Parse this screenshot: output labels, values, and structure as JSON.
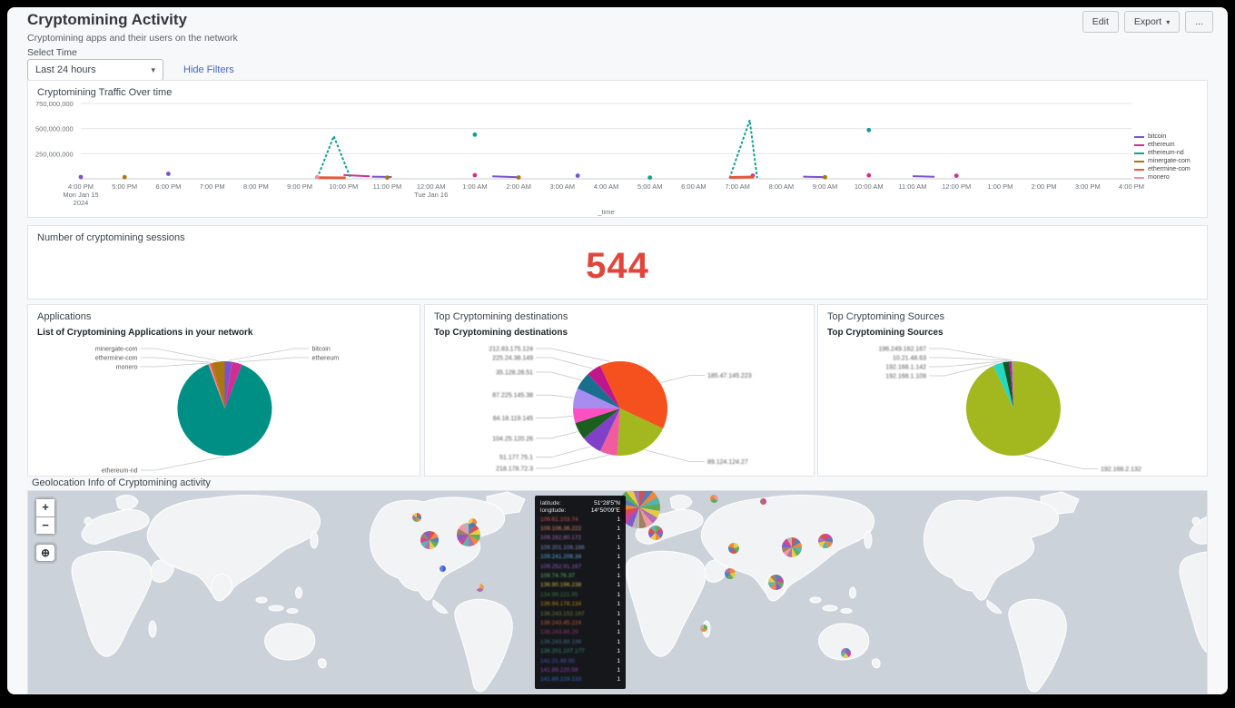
{
  "header": {
    "title": "Cryptomining Activity",
    "subtitle": "Cryptomining apps and their users on the network",
    "select_time_label": "Select Time",
    "time_range_value": "Last 24 hours",
    "hide_filters_label": "Hide Filters",
    "edit_label": "Edit",
    "export_label": "Export",
    "more_label": "..."
  },
  "panels": {
    "traffic_title": "Cryptomining Traffic Over time",
    "sessions_title": "Number of cryptomining sessions",
    "sessions_value": "544",
    "sessions_color": "#e0463c",
    "applications_title": "Applications",
    "applications_subtitle": "List of Cryptomining Applications in your network",
    "destinations_title": "Top Cryptomining destinations",
    "destinations_subtitle": "Top Cryptomining destinations",
    "sources_title": "Top Cryptomining Sources",
    "sources_subtitle": "Top Cryptomining Sources",
    "map_title": "Geolocation Info of Cryptomining activity"
  },
  "map_panel": {
    "zoom_in": "+",
    "zoom_out": "−",
    "locate": "⊕",
    "tooltip": {
      "latitude_label": "latitude:",
      "latitude_value": "51°28'5\"N",
      "longitude_label": "longitude:",
      "longitude_value": "14°50'09\"E",
      "rows": [
        {
          "ip": "108.61.103.74",
          "color": "#d9534f",
          "count": "1"
        },
        {
          "ip": "109.106.36.222",
          "color": "#e8837a",
          "count": "1"
        },
        {
          "ip": "109.162.80.172",
          "color": "#a569bd",
          "count": "1"
        },
        {
          "ip": "109.201.106.166",
          "color": "#7b88c4",
          "count": "1"
        },
        {
          "ip": "109.241.206.34",
          "color": "#5dade2",
          "count": "1"
        },
        {
          "ip": "109.252.91.167",
          "color": "#8e5ec9",
          "count": "1"
        },
        {
          "ip": "109.74.76.37",
          "color": "#58b36a",
          "count": "1"
        },
        {
          "ip": "136.90.196.238",
          "color": "#c9b845",
          "count": "1"
        },
        {
          "ip": "134.99.221.95",
          "color": "#3f7a4e",
          "count": "1"
        },
        {
          "ip": "136.94.178.134",
          "color": "#b8860b",
          "count": "1"
        },
        {
          "ip": "136.243.152.167",
          "color": "#6e7f3c",
          "count": "1"
        },
        {
          "ip": "136.243.45.224",
          "color": "#c45a3c",
          "count": "1"
        },
        {
          "ip": "136.243.86.29",
          "color": "#8e3c6e",
          "count": "1"
        },
        {
          "ip": "136.243.88.196",
          "color": "#3c6e8e",
          "count": "1"
        },
        {
          "ip": "136.201.107.177",
          "color": "#2e8b7a",
          "count": "1"
        },
        {
          "ip": "141.21.48.65",
          "color": "#4455c4",
          "count": "1"
        },
        {
          "ip": "141.89.220.59",
          "color": "#8e44ad",
          "count": "1"
        },
        {
          "ip": "141.89.229.133",
          "color": "#2e6ec4",
          "count": "1"
        }
      ]
    }
  },
  "chart_data": [
    {
      "id": "traffic",
      "type": "line",
      "title": "Cryptomining Traffic Over time",
      "xlabel": "_time",
      "ylim": [
        0,
        750000000
      ],
      "yticks": [
        {
          "value": 750000000,
          "label": "750,000,000"
        },
        {
          "value": 500000000,
          "label": "500,000,000"
        },
        {
          "value": 250000000,
          "label": "250,000,000"
        }
      ],
      "xticks": [
        {
          "label": "4:00 PM",
          "sub": "Mon Jan 15",
          "sub2": "2024"
        },
        {
          "label": "5:00 PM"
        },
        {
          "label": "6:00 PM"
        },
        {
          "label": "7:00 PM"
        },
        {
          "label": "8:00 PM"
        },
        {
          "label": "9:00 PM"
        },
        {
          "label": "10:00 PM"
        },
        {
          "label": "11:00 PM"
        },
        {
          "label": "12:00 AM",
          "sub": "Tue Jan 16"
        },
        {
          "label": "1:00 AM"
        },
        {
          "label": "2:00 AM"
        },
        {
          "label": "3:00 AM"
        },
        {
          "label": "4:00 AM"
        },
        {
          "label": "5:00 AM"
        },
        {
          "label": "6:00 AM"
        },
        {
          "label": "7:00 AM"
        },
        {
          "label": "8:00 AM"
        },
        {
          "label": "9:00 AM"
        },
        {
          "label": "10:00 AM"
        },
        {
          "label": "11:00 AM"
        },
        {
          "label": "12:00 PM"
        },
        {
          "label": "1:00 PM"
        },
        {
          "label": "2:00 PM"
        },
        {
          "label": "3:00 PM"
        },
        {
          "label": "4:00 PM"
        }
      ],
      "series": [
        {
          "name": "bitcoin",
          "color": "#7a52cc",
          "dots": [
            [
              0,
              18000000
            ],
            [
              2,
              50000000
            ],
            [
              11.35,
              32000000
            ]
          ],
          "lines": [
            [
              [
                6.65,
                22000000
              ],
              [
                7.1,
                18000000
              ]
            ],
            [
              [
                9.4,
                24000000
              ],
              [
                10,
                15000000
              ]
            ],
            [
              [
                16.5,
                22000000
              ],
              [
                17,
                17000000
              ]
            ],
            [
              [
                19,
                26000000
              ],
              [
                19.5,
                21000000
              ]
            ]
          ]
        },
        {
          "name": "ethereum",
          "color": "#cf2f92",
          "dots": [
            [
              9,
              36000000
            ],
            [
              15.35,
              32000000
            ],
            [
              18,
              34000000
            ],
            [
              20,
              31000000
            ]
          ],
          "lines": [
            [
              [
                6,
                38000000
              ],
              [
                6.6,
                24000000
              ]
            ]
          ]
        },
        {
          "name": "ethereum-nd",
          "color": "#11a095",
          "dash": true,
          "dots": [
            [
              9,
              440000000
            ],
            [
              13,
              12000000
            ],
            [
              18,
              485000000
            ]
          ],
          "lines": [
            [
              [
                5.4,
                6000000
              ],
              [
                5.78,
                425000000
              ],
              [
                6.16,
                8000000
              ]
            ],
            [
              [
                14.82,
                6000000
              ],
              [
                15.28,
                585000000
              ],
              [
                15.45,
                8000000
              ]
            ]
          ]
        },
        {
          "name": "minergate-com",
          "color": "#a8770f",
          "dots": [
            [
              1,
              16000000
            ],
            [
              7,
              12000000
            ],
            [
              10,
              14000000
            ],
            [
              17,
              16000000
            ]
          ],
          "lines": []
        },
        {
          "name": "ethermine-com",
          "color": "#e4593c",
          "width": 3,
          "dots": [],
          "lines": [
            [
              [
                5.4,
                11000000
              ],
              [
                6.05,
                9000000
              ]
            ],
            [
              [
                14.82,
                14000000
              ],
              [
                15.38,
                18000000
              ]
            ]
          ]
        },
        {
          "name": "monero",
          "color": "#f28e9e",
          "dots": [
            [
              5.4,
              16000000
            ]
          ],
          "lines": []
        }
      ]
    },
    {
      "id": "applications",
      "type": "pie",
      "title": "List of Cryptomining Applications in your network",
      "blurred": false,
      "slices": [
        {
          "label": "bitcoin",
          "value": 2.5,
          "color": "#7a52cc"
        },
        {
          "label": "ethereum",
          "value": 3.5,
          "color": "#cf2f92"
        },
        {
          "label": "ethereum-nd",
          "value": 88.3,
          "color": "#008f85"
        },
        {
          "label": "monero",
          "value": 0.6,
          "color": "#f28e9e"
        },
        {
          "label": "ethermine-com",
          "value": 0.8,
          "color": "#e4593c"
        },
        {
          "label": "minergate-com",
          "value": 4.3,
          "color": "#a8770f"
        }
      ]
    },
    {
      "id": "destinations",
      "type": "pie",
      "title": "Top Cryptomining destinations",
      "blurred": true,
      "slices": [
        {
          "label": "185.47.145.223",
          "value": 32,
          "color": "#f4511e"
        },
        {
          "label": "89.124.124.27",
          "value": 19,
          "color": "#a2b81e"
        },
        {
          "label": "218.178.72.3",
          "value": 6,
          "color": "#ef5da0"
        },
        {
          "label": "51.177.75.1",
          "value": 7,
          "color": "#8040c8"
        },
        {
          "label": "104.25.120.26",
          "value": 6,
          "color": "#1b5e20"
        },
        {
          "label": "84.18.119.145",
          "value": 5,
          "color": "#ff4fc3"
        },
        {
          "label": "87.225.145.38",
          "value": 7,
          "color": "#a78df0"
        },
        {
          "label": "35.128.28.51",
          "value": 6,
          "color": "#1a6f8f"
        },
        {
          "label": "225.24.38.149",
          "value": 5,
          "color": "#c0168c"
        },
        {
          "label": "212.83.175.124",
          "value": 7,
          "color": "#f4511e"
        }
      ]
    },
    {
      "id": "sources",
      "type": "pie",
      "title": "Top Cryptomining Sources",
      "blurred": true,
      "slices": [
        {
          "label": "192.168.2.132",
          "value": 93,
          "color": "#a2b81e"
        },
        {
          "label": "192.168.1.109",
          "value": 3.4,
          "color": "#26d7c4"
        },
        {
          "label": "192.168.1.142",
          "value": 2.2,
          "color": "#0e5a1d"
        },
        {
          "label": "10.21.48.63",
          "value": 0.8,
          "color": "#c0168c"
        },
        {
          "label": "196.249.162.167",
          "value": 0.6,
          "color": "#9aa0a6"
        }
      ]
    },
    {
      "id": "map_markers",
      "type": "map",
      "markers": [
        {
          "x": 428,
          "y": 29,
          "d": 10,
          "colors": [
            "#d64545",
            "#4878b8",
            "#f08030",
            "#58a84e",
            "#a868b0",
            "#e8c83c"
          ]
        },
        {
          "x": 442,
          "y": 54,
          "d": 20,
          "colors": [
            "#d64545",
            "#f08030",
            "#4878b8",
            "#58a84e",
            "#e8c83c",
            "#a868b0",
            "#50b0a8",
            "#d03890",
            "#987858",
            "#7a52cc"
          ]
        },
        {
          "x": 485,
          "y": 48,
          "d": 26,
          "colors": [
            "#4878b8",
            "#d64545",
            "#e8c83c",
            "#58a84e",
            "#f08030",
            "#a868b0",
            "#50b0a8",
            "#d03890",
            "#7a52cc",
            "#987858",
            "#f090a0",
            "#b8b0a8"
          ]
        },
        {
          "x": 489,
          "y": 34,
          "d": 9,
          "colors": [
            "#f08030",
            "#4878b8",
            "#e8c83c"
          ]
        },
        {
          "x": 456,
          "y": 85,
          "d": 7,
          "colors": [
            "#3a58c8",
            "#5878e0"
          ]
        },
        {
          "x": 497,
          "y": 106,
          "d": 9,
          "colors": [
            "#f0a030",
            "#a868b0",
            "#d0d0d0"
          ]
        },
        {
          "x": 673,
          "y": 18,
          "d": 46,
          "colors": [
            "#d64545",
            "#4878b8",
            "#f08030",
            "#50b0a8",
            "#58a84e",
            "#e8c83c",
            "#a868b0",
            "#f090a0",
            "#987858",
            "#b8b0a8",
            "#7a52cc",
            "#d03890",
            "#d64545",
            "#f08030",
            "#4878b8",
            "#58a84e",
            "#e8c83c",
            "#a868b0"
          ]
        },
        {
          "x": 691,
          "y": 46,
          "d": 16,
          "colors": [
            "#58a84e",
            "#d03890",
            "#4878b8",
            "#f08030",
            "#e8c83c",
            "#7a52cc",
            "#d64545",
            "#50b0a8"
          ]
        },
        {
          "x": 755,
          "y": 8,
          "d": 9,
          "colors": [
            "#f090a0",
            "#58a84e",
            "#f08030"
          ]
        },
        {
          "x": 809,
          "y": 11,
          "d": 7,
          "colors": [
            "#d03890",
            "#987858"
          ]
        },
        {
          "x": 777,
          "y": 63,
          "d": 12,
          "colors": [
            "#e8c83c",
            "#58a84e",
            "#d64545",
            "#4878b8",
            "#f08030"
          ]
        },
        {
          "x": 773,
          "y": 91,
          "d": 12,
          "colors": [
            "#f08030",
            "#e8c83c",
            "#58a84e",
            "#4878b8",
            "#a868b0"
          ]
        },
        {
          "x": 841,
          "y": 62,
          "d": 22,
          "colors": [
            "#d64545",
            "#4878b8",
            "#f08030",
            "#50b0a8",
            "#58a84e",
            "#e8c83c",
            "#a868b0",
            "#f090a0",
            "#987858",
            "#7a52cc",
            "#d03890",
            "#b8b0a8"
          ]
        },
        {
          "x": 878,
          "y": 55,
          "d": 16,
          "colors": [
            "#d03890",
            "#4878b8",
            "#f08030",
            "#50b0a8",
            "#e8c83c",
            "#a868b0",
            "#d64545"
          ]
        },
        {
          "x": 823,
          "y": 100,
          "d": 17,
          "colors": [
            "#4878b8",
            "#d03890",
            "#58a84e",
            "#7a52cc",
            "#f08030",
            "#50b0a8",
            "#e8c83c",
            "#987858"
          ]
        },
        {
          "x": 744,
          "y": 151,
          "d": 8,
          "colors": [
            "#58a84e",
            "#f08030",
            "#b8b0a8"
          ]
        },
        {
          "x": 900,
          "y": 178,
          "d": 11,
          "colors": [
            "#4878b8",
            "#d03890",
            "#e8c83c",
            "#50b0a8",
            "#a868b0"
          ]
        }
      ]
    }
  ]
}
